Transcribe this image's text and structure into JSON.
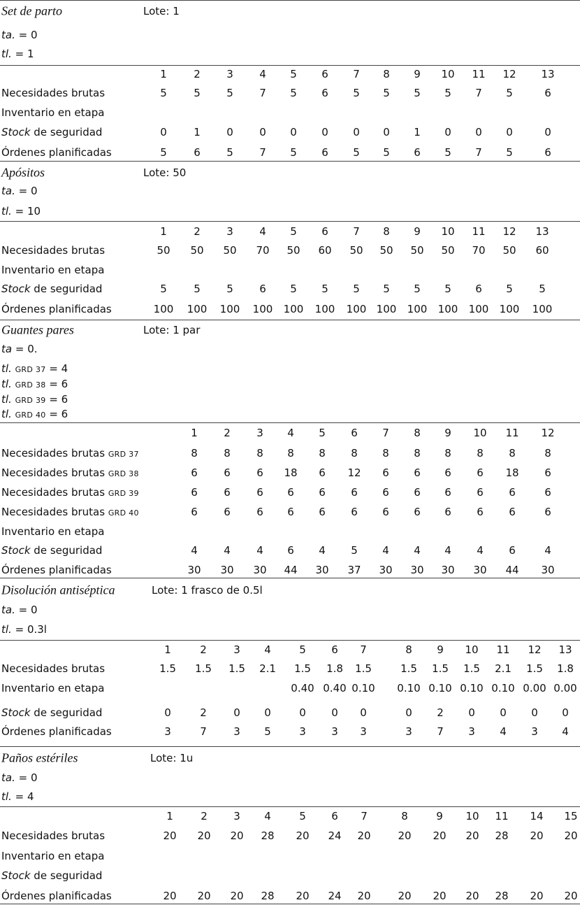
{
  "sections": [
    {
      "title": "Set de parto",
      "lot": "Lote: 1",
      "params": [
        {
          "name": "ta.",
          "value": "= 0"
        },
        {
          "name": "tl.",
          "value": "= 1"
        }
      ],
      "periods": [
        "1",
        "2",
        "3",
        "4",
        "5",
        "6",
        "7",
        "8",
        "9",
        "10",
        "11",
        "12",
        "13"
      ],
      "rows": [
        {
          "label": "Necesidades brutas",
          "values": [
            "5",
            "5",
            "5",
            "7",
            "5",
            "6",
            "5",
            "5",
            "5",
            "5",
            "7",
            "5",
            "6"
          ]
        },
        {
          "label": "Inventario en etapa"
        },
        {
          "em": "Stock",
          "label": "de seguridad",
          "values": [
            "0",
            "1",
            "0",
            "0",
            "0",
            "0",
            "0",
            "0",
            "1",
            "0",
            "0",
            "0",
            "0"
          ]
        },
        {
          "label": "Órdenes planificadas",
          "values": [
            "5",
            "6",
            "5",
            "7",
            "5",
            "6",
            "5",
            "5",
            "6",
            "5",
            "7",
            "5",
            "6"
          ]
        }
      ]
    },
    {
      "title": "Apósitos",
      "lot": "Lote: 50",
      "params": [
        {
          "name": "ta.",
          "value": "= 0"
        },
        {
          "name": "tl.",
          "value": "= 10"
        }
      ],
      "periods": [
        "1",
        "2",
        "3",
        "4",
        "5",
        "6",
        "7",
        "8",
        "9",
        "10",
        "11",
        "12",
        "13"
      ],
      "rows": [
        {
          "label": "Necesidades brutas",
          "values": [
            "50",
            "50",
            "50",
            "70",
            "50",
            "60",
            "50",
            "50",
            "50",
            "50",
            "70",
            "50",
            "60"
          ]
        },
        {
          "label": "Inventario en etapa"
        },
        {
          "em": "Stock",
          "label": "de seguridad",
          "values": [
            "5",
            "5",
            "5",
            "6",
            "5",
            "5",
            "5",
            "5",
            "5",
            "5",
            "6",
            "5",
            "5"
          ]
        },
        {
          "label": "Órdenes planificadas",
          "values": [
            "100",
            "100",
            "100",
            "100",
            "100",
            "100",
            "100",
            "100",
            "100",
            "100",
            "100",
            "100",
            "100"
          ]
        }
      ]
    },
    {
      "title": "Guantes pares",
      "lot": "Lote: 1 par",
      "params": [
        {
          "name": "ta",
          "value": "= 0."
        },
        {
          "name": "tl.",
          "sub": "GRD 37",
          "value": "= 4"
        },
        {
          "name": "tl.",
          "sub": "GRD 38",
          "value": "= 6"
        },
        {
          "name": "tl.",
          "sub": "GRD 39",
          "value": "= 6"
        },
        {
          "name": "tl.",
          "sub": "GRD 40",
          "value": "= 6"
        }
      ],
      "periods": [
        "1",
        "2",
        "3",
        "4",
        "5",
        "6",
        "7",
        "8",
        "9",
        "10",
        "11",
        "12"
      ],
      "rows": [
        {
          "label": "Necesidades brutas",
          "sub": "GRD 37",
          "values": [
            "8",
            "8",
            "8",
            "8",
            "8",
            "8",
            "8",
            "8",
            "8",
            "8",
            "8",
            "8"
          ]
        },
        {
          "label": "Necesidades brutas",
          "sub": "GRD 38",
          "values": [
            "6",
            "6",
            "6",
            "18",
            "6",
            "12",
            "6",
            "6",
            "6",
            "6",
            "18",
            "6"
          ]
        },
        {
          "label": "Necesidades brutas",
          "sub": "GRD 39",
          "values": [
            "6",
            "6",
            "6",
            "6",
            "6",
            "6",
            "6",
            "6",
            "6",
            "6",
            "6",
            "6"
          ]
        },
        {
          "label": "Necesidades brutas",
          "sub": "GRD 40",
          "values": [
            "6",
            "6",
            "6",
            "6",
            "6",
            "6",
            "6",
            "6",
            "6",
            "6",
            "6",
            "6"
          ]
        },
        {
          "label": "Inventario en etapa"
        },
        {
          "em": "Stock",
          "label": "de seguridad",
          "values": [
            "4",
            "4",
            "4",
            "6",
            "4",
            "5",
            "4",
            "4",
            "4",
            "4",
            "6",
            "4"
          ]
        },
        {
          "label": "Órdenes planificadas",
          "values": [
            "30",
            "30",
            "30",
            "44",
            "30",
            "37",
            "30",
            "30",
            "30",
            "30",
            "44",
            "30"
          ]
        }
      ]
    },
    {
      "title": "Disolución antiséptica",
      "lot": "Lote: 1 frasco de 0.5l",
      "params": [
        {
          "name": "ta.",
          "value": "= 0"
        },
        {
          "name": "tl.",
          "value": "= 0.3l"
        }
      ],
      "periods": [
        "1",
        "2",
        "3",
        "4",
        "5",
        "6",
        "7",
        "8",
        "9",
        "10",
        "11",
        "12",
        "13"
      ],
      "rows": [
        {
          "label": "Necesidades brutas",
          "values": [
            "1.5",
            "1.5",
            "1.5",
            "2.1",
            "1.5",
            "1.8",
            "1.5",
            "1.5",
            "1.5",
            "1.5",
            "2.1",
            "1.5",
            "1.8"
          ]
        },
        {
          "label": "Inventario en etapa",
          "values": [
            null,
            null,
            null,
            null,
            "0.40",
            "0.40",
            "0.10",
            "0.10",
            "0.10",
            "0.10",
            "0.10",
            "0.00",
            "0.00"
          ]
        },
        {
          "em": "Stock",
          "label": "de seguridad",
          "values": [
            "0",
            "2",
            "0",
            "0",
            "0",
            "0",
            "0",
            "0",
            "2",
            "0",
            "0",
            "0",
            "0"
          ]
        },
        {
          "label": "Órdenes planificadas",
          "values": [
            "3",
            "7",
            "3",
            "5",
            "3",
            "3",
            "3",
            "3",
            "7",
            "3",
            "4",
            "3",
            "4"
          ]
        }
      ]
    },
    {
      "title": "Paños estériles",
      "lot": "Lote: 1u",
      "params": [
        {
          "name": "ta.",
          "value": "= 0"
        },
        {
          "name": "tl.",
          "value": "= 4"
        }
      ],
      "periods": [
        "1",
        "2",
        "3",
        "4",
        "5",
        "6",
        "7",
        "8",
        "9",
        "10",
        "11",
        "14",
        "15"
      ],
      "rows": [
        {
          "label": "Necesidades brutas",
          "values": [
            "20",
            "20",
            "20",
            "28",
            "20",
            "24",
            "20",
            "20",
            "20",
            "20",
            "28",
            "20",
            "20"
          ]
        },
        {
          "label": "Inventario en etapa"
        },
        {
          "em": "Stock",
          "label": "de seguridad"
        },
        {
          "label": "Órdenes planificadas",
          "values": [
            "20",
            "20",
            "20",
            "28",
            "20",
            "24",
            "20",
            "20",
            "20",
            "20",
            "28",
            "20",
            "20"
          ]
        }
      ]
    }
  ]
}
